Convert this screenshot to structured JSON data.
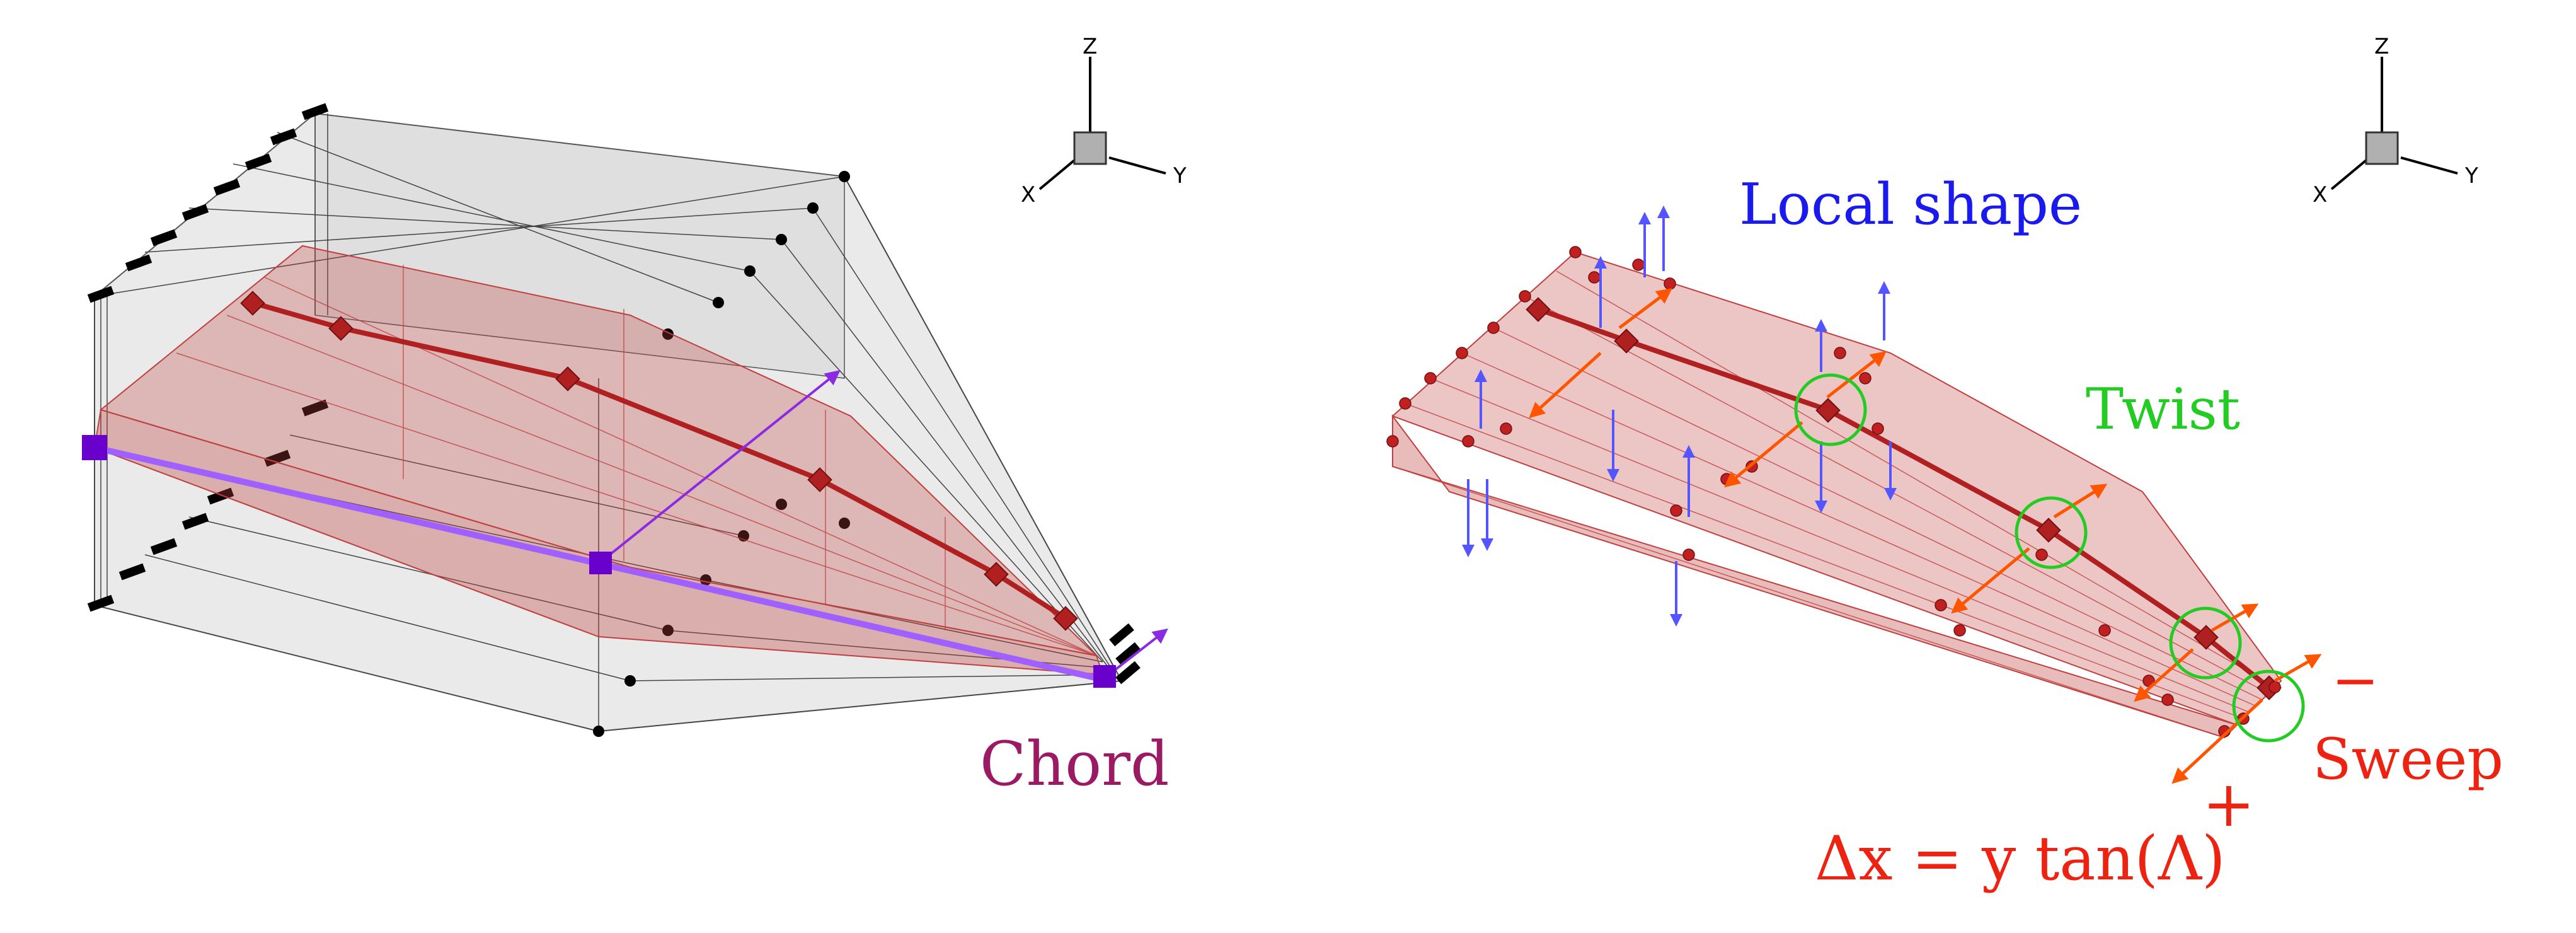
{
  "left_panel": {
    "chord_label": "Chord",
    "axes": {
      "z": "Z",
      "x": "X",
      "y": "Y"
    },
    "colors": {
      "wing": "#c04040",
      "frame": "#808080",
      "chord": "#8a2be2",
      "chord_text": "#9a1a63"
    }
  },
  "right_panel": {
    "local_shape_label": "Local shape",
    "twist_label": "Twist",
    "sweep_label": "Sweep",
    "minus_label": "−",
    "plus_label": "+",
    "formula_label": "Δx = y tan(Λ)",
    "axes": {
      "z": "Z",
      "x": "X",
      "y": "Y"
    },
    "colors": {
      "local_shape": "#1a1aee",
      "twist": "#22cc22",
      "sweep": "#ee2211",
      "arrow_orange": "#ff5500",
      "arrow_blue": "#5555ff"
    }
  }
}
